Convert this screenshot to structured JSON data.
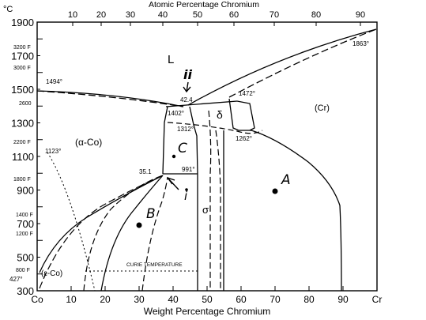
{
  "chart_data": {
    "type": "phase-diagram",
    "top_axis_title": "Atomic Percentage Chromium",
    "top_ticks": [
      "10",
      "20",
      "30",
      "40",
      "50",
      "60",
      "70",
      "80",
      "90"
    ],
    "bottom_axis_title": "Weight Percentage Chromium",
    "bottom_ticks": [
      "Co",
      "10",
      "20",
      "30",
      "40",
      "50",
      "60",
      "70",
      "80",
      "90",
      "Cr"
    ],
    "celsius_unit": "°C",
    "celsius_ticks": [
      "1900",
      "1700",
      "1500",
      "1300",
      "1100",
      "900",
      "700",
      "500",
      "300"
    ],
    "fahrenheit_ticks": [
      "3200 F",
      "3000 F",
      "2600",
      "2200 F",
      "1800 F",
      "1400 F",
      "1200 F",
      "800 F"
    ],
    "xlim": [
      0,
      100
    ],
    "ylim": [
      300,
      1900
    ],
    "phase_labels": {
      "liquid": "L",
      "alpha": "(α-Co)",
      "epsilon": "(ε-Co)",
      "delta": "δ",
      "cr": "(Cr)",
      "sigma": "σ",
      "curie": "CURIE TEMPERATURE"
    },
    "temperature_annotations": {
      "co_melt": "1494°",
      "cr_melt": "1863°",
      "eutectic_comp": "42.4",
      "eutectic_left": "1402°",
      "eutectic_right": "1472°",
      "t1312": "1312°",
      "t1262": "1262°",
      "t1123": "1123°",
      "t991": "991°",
      "comp_35": "35.1",
      "t427": "427°"
    },
    "handwritten_labels": {
      "ii": "ii",
      "c": "C",
      "i": "i",
      "b": "B",
      "a": "A"
    }
  }
}
